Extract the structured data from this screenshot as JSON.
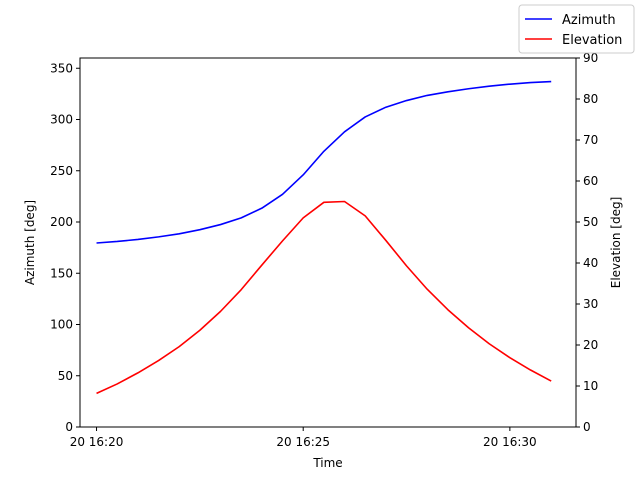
{
  "chart_data": {
    "type": "line",
    "xlabel": "Time",
    "ylabel_left": "Azimuth [deg]",
    "ylabel_right": "Elevation [deg]",
    "xlim": [
      "2024-01-20 16:19:36",
      "2024-01-20 16:31:36"
    ],
    "x_ticks": [
      {
        "time": "2024-01-20 16:20:00",
        "label": "20 16:20"
      },
      {
        "time": "2024-01-20 16:25:00",
        "label": "20 16:25"
      },
      {
        "time": "2024-01-20 16:30:00",
        "label": "20 16:30"
      }
    ],
    "ylim_left": [
      0,
      360
    ],
    "yticks_left": [
      0,
      50,
      100,
      150,
      200,
      250,
      300,
      350
    ],
    "ylim_right": [
      0,
      90
    ],
    "yticks_right": [
      0,
      10,
      20,
      30,
      40,
      50,
      60,
      70,
      80,
      90
    ],
    "legend_position": "top-right",
    "grid": false,
    "x": [
      "16:20:00",
      "16:20:30",
      "16:21:00",
      "16:21:30",
      "16:22:00",
      "16:22:30",
      "16:23:00",
      "16:23:30",
      "16:24:00",
      "16:24:30",
      "16:25:00",
      "16:25:30",
      "16:26:00",
      "16:26:30",
      "16:27:00",
      "16:27:30",
      "16:28:00",
      "16:28:30",
      "16:29:00",
      "16:29:30",
      "16:30:00",
      "16:30:30",
      "16:31:00"
    ],
    "series": [
      {
        "name": "Azimuth",
        "axis": "left",
        "color": "#0000ff",
        "values": [
          179.5,
          181,
          183,
          185.5,
          188.5,
          192.5,
          197.5,
          204,
          213.5,
          227,
          246,
          269,
          288,
          302.5,
          312,
          318.5,
          323.5,
          327,
          330,
          332.5,
          334.5,
          336,
          337
        ]
      },
      {
        "name": "Elevation",
        "axis": "right",
        "color": "#ff0000",
        "values": [
          8.2,
          10.5,
          13.2,
          16.2,
          19.6,
          23.6,
          28.2,
          33.5,
          39.5,
          45.4,
          51,
          54.8,
          55,
          51.5,
          45.5,
          39.3,
          33.6,
          28.6,
          24.2,
          20.3,
          16.9,
          13.9,
          11.2
        ]
      }
    ]
  }
}
